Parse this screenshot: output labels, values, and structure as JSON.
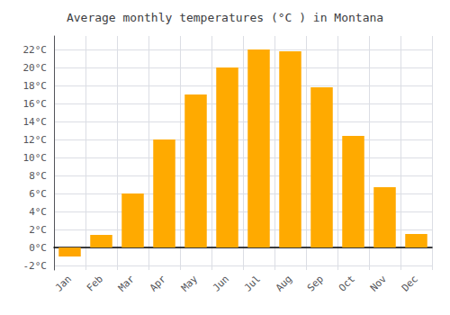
{
  "chart_data": {
    "type": "bar",
    "title": "Average monthly temperatures (°C ) in Montana",
    "categories": [
      "Jan",
      "Feb",
      "Mar",
      "Apr",
      "May",
      "Jun",
      "Jul",
      "Aug",
      "Sep",
      "Oct",
      "Nov",
      "Dec"
    ],
    "values": [
      -1.0,
      1.4,
      6.0,
      12.0,
      17.0,
      20.0,
      22.0,
      21.8,
      17.8,
      12.4,
      6.7,
      1.5
    ],
    "colors": [
      "#FFA500",
      "#FFAA00",
      "#FFAA00",
      "#FFAA00",
      "#FFAA00",
      "#FFAA00",
      "#FFAA00",
      "#FFAA00",
      "#FFAA00",
      "#FFAA00",
      "#FFAA00",
      "#FFAA00"
    ],
    "ylim": [
      -2.5,
      23.5
    ],
    "yticks": [
      {
        "value": -2,
        "label": "-2°C"
      },
      {
        "value": 0,
        "label": "0°C"
      },
      {
        "value": 2,
        "label": "2°C"
      },
      {
        "value": 4,
        "label": "4°C"
      },
      {
        "value": 6,
        "label": "6°C"
      },
      {
        "value": 8,
        "label": "8°C"
      },
      {
        "value": 10,
        "label": "10°C"
      },
      {
        "value": 12,
        "label": "12°C"
      },
      {
        "value": 14,
        "label": "14°C"
      },
      {
        "value": 16,
        "label": "16°C"
      },
      {
        "value": 18,
        "label": "18°C"
      },
      {
        "value": 20,
        "label": "20°C"
      },
      {
        "value": 22,
        "label": "22°C"
      }
    ],
    "grid": true
  }
}
